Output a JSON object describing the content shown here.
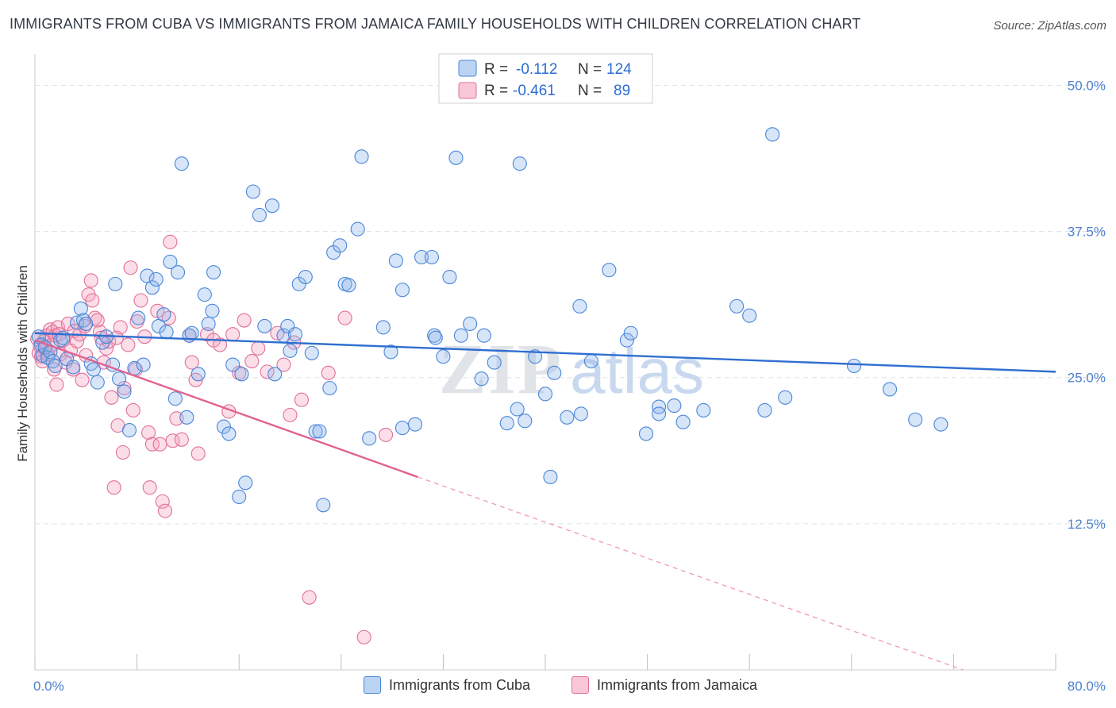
{
  "title": "IMMIGRANTS FROM CUBA VS IMMIGRANTS FROM JAMAICA FAMILY HOUSEHOLDS WITH CHILDREN CORRELATION CHART",
  "source": "Source: ZipAtlas.com",
  "watermark": "ZIPatlas",
  "legend_box": {
    "rows": [
      {
        "r_label": "R =",
        "r_value": "-0.112",
        "n_label": "N =",
        "n_value": "124"
      },
      {
        "r_label": "R =",
        "r_value": "-0.461",
        "n_label": "N =",
        "n_value": "89"
      }
    ]
  },
  "bottom_legend": [
    "Immigrants from Cuba",
    "Immigrants from Jamaica"
  ],
  "colors": {
    "cuba": "#4a86d8",
    "cuba_fill": "rgba(140,180,235,0.35)",
    "jamaica": "#e0709a",
    "jamaica_fill": "rgba(245,160,190,0.35)",
    "axis_tick": "#4a7fd0"
  },
  "chart_data": {
    "type": "scatter",
    "xlabel": "",
    "ylabel": "Family Households with Children",
    "xlim": [
      0,
      80
    ],
    "ylim": [
      0,
      52
    ],
    "x_tick_labels": {
      "left": "0.0%",
      "right": "80.0%"
    },
    "y_ticks": [
      {
        "value": 50,
        "label": "50.0%"
      },
      {
        "value": 37.5,
        "label": "37.5%"
      },
      {
        "value": 25,
        "label": "25.0%"
      },
      {
        "value": 12.5,
        "label": "12.5%"
      }
    ],
    "grid": "horizontal dashed",
    "series": [
      {
        "name": "Immigrants from Cuba",
        "trend": {
          "x0": 0,
          "y0": 28.8,
          "x1": 80,
          "y1": 25.5
        },
        "points": [
          [
            0.3,
            28.5
          ],
          [
            0.5,
            27.8
          ],
          [
            0.6,
            26.9
          ],
          [
            0.8,
            27.6
          ],
          [
            1.0,
            26.7
          ],
          [
            1.2,
            27.2
          ],
          [
            1.4,
            26.4
          ],
          [
            1.6,
            26.0
          ],
          [
            2.0,
            28.2
          ],
          [
            2.2,
            28.4
          ],
          [
            2.5,
            26.6
          ],
          [
            3.0,
            25.9
          ],
          [
            3.3,
            29.7
          ],
          [
            3.6,
            30.9
          ],
          [
            3.8,
            29.9
          ],
          [
            4.0,
            29.6
          ],
          [
            4.4,
            26.2
          ],
          [
            4.6,
            25.7
          ],
          [
            4.9,
            24.6
          ],
          [
            5.3,
            28.0
          ],
          [
            5.6,
            28.5
          ],
          [
            6.1,
            26.1
          ],
          [
            6.3,
            33.0
          ],
          [
            6.6,
            24.9
          ],
          [
            7.0,
            23.8
          ],
          [
            7.4,
            20.5
          ],
          [
            7.8,
            25.8
          ],
          [
            8.1,
            30.1
          ],
          [
            8.5,
            26.1
          ],
          [
            8.8,
            33.7
          ],
          [
            9.2,
            32.7
          ],
          [
            9.5,
            33.4
          ],
          [
            9.7,
            29.4
          ],
          [
            10.1,
            30.4
          ],
          [
            10.3,
            28.9
          ],
          [
            10.6,
            34.9
          ],
          [
            11.0,
            23.2
          ],
          [
            11.2,
            34.0
          ],
          [
            11.5,
            43.3
          ],
          [
            11.9,
            21.6
          ],
          [
            12.1,
            28.6
          ],
          [
            12.3,
            28.8
          ],
          [
            12.8,
            25.3
          ],
          [
            13.3,
            32.1
          ],
          [
            13.6,
            29.6
          ],
          [
            13.9,
            30.7
          ],
          [
            14.0,
            34.0
          ],
          [
            14.8,
            20.8
          ],
          [
            15.2,
            20.2
          ],
          [
            15.5,
            26.1
          ],
          [
            16.0,
            14.8
          ],
          [
            16.2,
            25.3
          ],
          [
            16.5,
            16.0
          ],
          [
            17.1,
            40.9
          ],
          [
            17.6,
            38.9
          ],
          [
            18.0,
            29.4
          ],
          [
            18.6,
            39.7
          ],
          [
            18.8,
            25.3
          ],
          [
            19.5,
            28.6
          ],
          [
            19.8,
            29.4
          ],
          [
            20.0,
            27.3
          ],
          [
            20.4,
            28.7
          ],
          [
            20.7,
            33.0
          ],
          [
            21.2,
            33.6
          ],
          [
            21.7,
            27.1
          ],
          [
            22.0,
            20.4
          ],
          [
            22.3,
            20.4
          ],
          [
            22.6,
            14.1
          ],
          [
            23.1,
            24.1
          ],
          [
            23.4,
            35.7
          ],
          [
            23.9,
            36.3
          ],
          [
            24.3,
            33.0
          ],
          [
            24.6,
            32.9
          ],
          [
            25.3,
            37.7
          ],
          [
            25.6,
            43.9
          ],
          [
            26.2,
            19.8
          ],
          [
            27.3,
            29.3
          ],
          [
            27.9,
            27.2
          ],
          [
            28.3,
            35.0
          ],
          [
            28.8,
            32.5
          ],
          [
            28.8,
            20.7
          ],
          [
            29.8,
            21.0
          ],
          [
            30.3,
            35.3
          ],
          [
            31.1,
            35.3
          ],
          [
            31.3,
            28.6
          ],
          [
            31.4,
            28.4
          ],
          [
            32.0,
            26.8
          ],
          [
            32.5,
            33.6
          ],
          [
            33.0,
            43.8
          ],
          [
            33.4,
            28.6
          ],
          [
            34.1,
            29.6
          ],
          [
            35.0,
            24.9
          ],
          [
            35.2,
            28.6
          ],
          [
            36.0,
            26.3
          ],
          [
            37.0,
            21.1
          ],
          [
            37.8,
            22.3
          ],
          [
            38.0,
            43.3
          ],
          [
            38.4,
            21.3
          ],
          [
            39.2,
            26.8
          ],
          [
            40.0,
            23.6
          ],
          [
            40.4,
            16.5
          ],
          [
            40.7,
            25.4
          ],
          [
            41.7,
            21.6
          ],
          [
            42.7,
            31.1
          ],
          [
            42.8,
            21.9
          ],
          [
            43.6,
            26.4
          ],
          [
            45.0,
            34.2
          ],
          [
            46.4,
            28.2
          ],
          [
            46.7,
            28.8
          ],
          [
            47.9,
            20.2
          ],
          [
            48.9,
            22.5
          ],
          [
            48.9,
            21.9
          ],
          [
            50.1,
            22.6
          ],
          [
            50.8,
            21.2
          ],
          [
            52.4,
            22.2
          ],
          [
            55.0,
            31.1
          ],
          [
            56.0,
            30.3
          ],
          [
            57.2,
            22.2
          ],
          [
            57.8,
            45.8
          ],
          [
            58.8,
            23.3
          ],
          [
            64.2,
            26.0
          ],
          [
            67.0,
            24.0
          ],
          [
            69.0,
            21.4
          ],
          [
            71.0,
            21.0
          ]
        ]
      },
      {
        "name": "Immigrants from Jamaica",
        "trend": {
          "x0": 0,
          "y0": 28.2,
          "x1": 30,
          "y1": 16.5,
          "dash_to_x": 80,
          "dash_to_y": -2.8
        },
        "points": [
          [
            0.2,
            28.3
          ],
          [
            0.3,
            27.1
          ],
          [
            0.4,
            27.7
          ],
          [
            0.5,
            26.8
          ],
          [
            0.6,
            26.4
          ],
          [
            0.7,
            28.1
          ],
          [
            0.8,
            27.5
          ],
          [
            0.9,
            28.6
          ],
          [
            1.0,
            27.0
          ],
          [
            1.2,
            29.1
          ],
          [
            1.3,
            27.8
          ],
          [
            1.4,
            28.9
          ],
          [
            1.5,
            25.7
          ],
          [
            1.6,
            28.6
          ],
          [
            1.7,
            24.4
          ],
          [
            1.8,
            29.3
          ],
          [
            1.9,
            28.7
          ],
          [
            2.0,
            27.0
          ],
          [
            2.2,
            28.2
          ],
          [
            2.4,
            26.3
          ],
          [
            2.6,
            29.6
          ],
          [
            2.8,
            27.3
          ],
          [
            3.0,
            25.7
          ],
          [
            3.1,
            29.0
          ],
          [
            3.3,
            28.1
          ],
          [
            3.5,
            28.7
          ],
          [
            3.7,
            24.8
          ],
          [
            3.9,
            29.4
          ],
          [
            4.0,
            26.9
          ],
          [
            4.2,
            32.1
          ],
          [
            4.4,
            33.3
          ],
          [
            4.5,
            31.6
          ],
          [
            4.7,
            30.1
          ],
          [
            4.9,
            29.9
          ],
          [
            5.1,
            28.9
          ],
          [
            5.2,
            28.4
          ],
          [
            5.4,
            26.3
          ],
          [
            5.6,
            27.5
          ],
          [
            5.8,
            28.1
          ],
          [
            6.0,
            23.3
          ],
          [
            6.2,
            15.6
          ],
          [
            6.4,
            28.4
          ],
          [
            6.5,
            20.9
          ],
          [
            6.7,
            29.3
          ],
          [
            6.9,
            18.6
          ],
          [
            7.0,
            24.1
          ],
          [
            7.3,
            27.8
          ],
          [
            7.5,
            34.4
          ],
          [
            7.7,
            22.2
          ],
          [
            7.9,
            25.7
          ],
          [
            8.0,
            29.8
          ],
          [
            8.3,
            31.6
          ],
          [
            8.6,
            28.5
          ],
          [
            8.9,
            20.3
          ],
          [
            9.0,
            15.6
          ],
          [
            9.2,
            19.3
          ],
          [
            9.6,
            30.7
          ],
          [
            9.8,
            19.3
          ],
          [
            10.0,
            14.4
          ],
          [
            10.2,
            13.6
          ],
          [
            10.5,
            30.1
          ],
          [
            10.6,
            36.6
          ],
          [
            10.8,
            19.6
          ],
          [
            11.1,
            21.5
          ],
          [
            11.5,
            19.7
          ],
          [
            12.1,
            28.6
          ],
          [
            12.3,
            26.3
          ],
          [
            12.6,
            24.8
          ],
          [
            12.8,
            18.5
          ],
          [
            13.5,
            28.7
          ],
          [
            14.0,
            28.2
          ],
          [
            14.5,
            27.8
          ],
          [
            15.2,
            22.1
          ],
          [
            15.5,
            28.7
          ],
          [
            16.0,
            25.4
          ],
          [
            16.4,
            29.9
          ],
          [
            17.0,
            26.4
          ],
          [
            17.5,
            27.5
          ],
          [
            18.2,
            25.5
          ],
          [
            19.0,
            28.8
          ],
          [
            19.5,
            26.1
          ],
          [
            20.0,
            21.8
          ],
          [
            20.3,
            28.0
          ],
          [
            20.9,
            23.1
          ],
          [
            21.5,
            6.2
          ],
          [
            23.0,
            25.4
          ],
          [
            24.3,
            30.1
          ],
          [
            25.8,
            2.8
          ],
          [
            27.5,
            20.1
          ]
        ]
      }
    ]
  }
}
